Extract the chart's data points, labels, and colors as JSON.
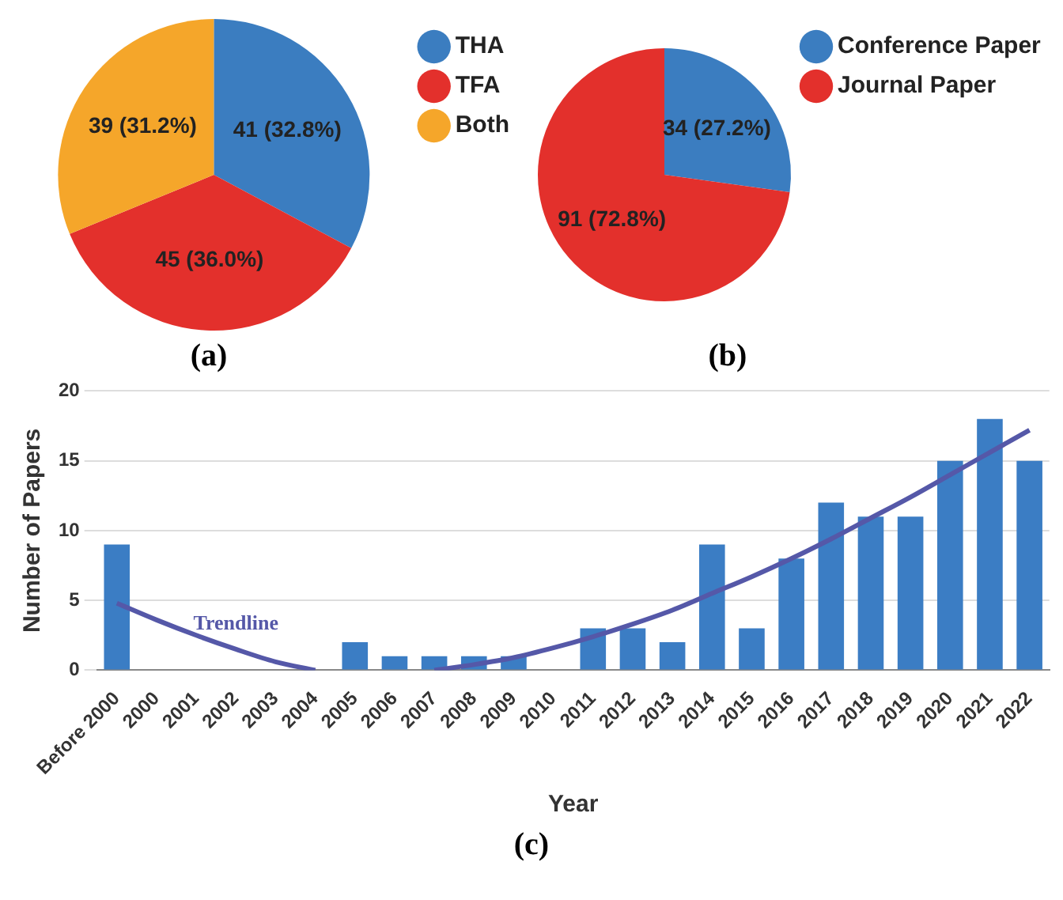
{
  "chart_data": [
    {
      "type": "pie",
      "annotations": [
        "(a)"
      ],
      "categories": [
        "THA",
        "TFA",
        "Both"
      ],
      "values": [
        41,
        45,
        39
      ],
      "colors": [
        "#3b7dc0",
        "#e3302c",
        "#f5a62a"
      ],
      "value_labels": [
        "41 (32.8%)",
        "45 (36.0%)",
        "39 (31.2%)"
      ],
      "legend": "right"
    },
    {
      "type": "pie",
      "annotations": [
        "(b)"
      ],
      "categories": [
        "Conference Paper",
        "Journal Paper"
      ],
      "values": [
        34,
        91
      ],
      "colors": [
        "#3b7dc0",
        "#e3302c"
      ],
      "value_labels": [
        "34 (27.2%)",
        "91 (72.8%)"
      ],
      "legend": "right"
    },
    {
      "type": "bar",
      "annotations": [
        "(c)",
        "Trendline"
      ],
      "xlabel": "Year",
      "ylabel": "Number of Papers",
      "categories": [
        "Before 2000",
        "2000",
        "2001",
        "2002",
        "2003",
        "2004",
        "2005",
        "2006",
        "2007",
        "2008",
        "2009",
        "2010",
        "2011",
        "2012",
        "2013",
        "2014",
        "2015",
        "2016",
        "2017",
        "2018",
        "2019",
        "2020",
        "2021",
        "2022"
      ],
      "series": [
        {
          "type": "bar",
          "color": "#3b7dc4",
          "values": [
            9,
            0,
            0,
            0,
            0,
            0,
            2,
            1,
            1,
            1,
            1,
            0,
            3,
            3,
            2,
            9,
            3,
            8,
            12,
            11,
            11,
            15,
            18,
            15
          ]
        },
        {
          "type": "line",
          "color": "#5558a8",
          "values": [
            4.8,
            3.6,
            2.5,
            1.5,
            0.6,
            0,
            null,
            null,
            0,
            0.4,
            0.9,
            1.6,
            2.4,
            3.3,
            4.3,
            5.5,
            6.7,
            8.0,
            9.4,
            10.9,
            12.4,
            14.0,
            15.6,
            17.2
          ]
        }
      ],
      "ylim": [
        0,
        20
      ],
      "yticks": [
        0,
        5,
        10,
        15,
        20
      ],
      "grid": "y",
      "legend": false
    }
  ]
}
